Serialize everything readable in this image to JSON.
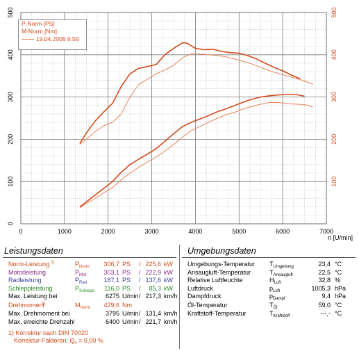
{
  "chart_data": {
    "type": "line",
    "xlabel": "n [U/min]",
    "xlim": [
      0,
      7000
    ],
    "ylim_left": [
      0,
      500
    ],
    "ylim_right": [
      0,
      500
    ],
    "x_ticks": [
      "0",
      "1000",
      "2000",
      "3000",
      "4000",
      "5000",
      "6000",
      "7000"
    ],
    "y_ticks_left": [
      "0",
      "100",
      "200",
      "300",
      "400",
      "500"
    ],
    "y_ticks_right": [
      "100",
      "200",
      "300",
      "400",
      "500"
    ],
    "grid": true,
    "legend": [
      "P-Norm [PS]",
      "M-Norm [Nm]",
      "19.04.2006 9:59"
    ],
    "colors": {
      "main": "#d44a1a",
      "comparison": "#e8825a",
      "grid": "#9a9a9a"
    },
    "series": [
      {
        "name": "P-Norm [PS]",
        "x": [
          1350,
          1500,
          1700,
          1900,
          2100,
          2300,
          2500,
          2700,
          2900,
          3100,
          3300,
          3500,
          3700,
          3900,
          4100,
          4300,
          4500,
          4700,
          4900,
          5100,
          5300,
          5500,
          5700,
          5900,
          6100,
          6300,
          6500
        ],
        "values": [
          40,
          52,
          68,
          84,
          100,
          122,
          140,
          153,
          165,
          178,
          195,
          213,
          230,
          240,
          248,
          256,
          265,
          272,
          280,
          288,
          295,
          300,
          303,
          305,
          306,
          306,
          302
        ]
      },
      {
        "name": "M-Norm [Nm]",
        "x": [
          1350,
          1500,
          1700,
          1900,
          2000,
          2100,
          2300,
          2500,
          2700,
          2900,
          3100,
          3300,
          3500,
          3700,
          3800,
          4000,
          4200,
          4400,
          4600,
          4800,
          5000,
          5200,
          5400,
          5600,
          5800,
          6000,
          6200,
          6400
        ],
        "values": [
          190,
          215,
          243,
          265,
          275,
          285,
          325,
          355,
          368,
          372,
          377,
          400,
          415,
          428,
          428,
          415,
          412,
          413,
          408,
          405,
          404,
          398,
          390,
          380,
          370,
          362,
          352,
          343
        ]
      },
      {
        "name": "19.04.2006 9:59",
        "x": [
          1350,
          1500,
          1700,
          1900,
          2100,
          2300,
          2500,
          2700,
          2900,
          3100,
          3300,
          3500,
          3700,
          3900,
          4100,
          4300,
          4500,
          4700,
          4900,
          5100,
          5300,
          5500,
          5700,
          5900,
          6100,
          6300,
          6500,
          6700
        ],
        "values": [
          38,
          48,
          60,
          73,
          86,
          104,
          120,
          134,
          146,
          158,
          172,
          188,
          205,
          220,
          230,
          240,
          250,
          258,
          264,
          272,
          278,
          283,
          287,
          287,
          285,
          283,
          282,
          276
        ]
      },
      {
        "name": "19.04.2006 9:59",
        "x": [
          1350,
          1500,
          1700,
          1900,
          2100,
          2300,
          2500,
          2700,
          2900,
          3100,
          3300,
          3500,
          3700,
          3900,
          4100,
          4300,
          4500,
          4700,
          4900,
          5100,
          5300,
          5500,
          5700,
          5900,
          6100,
          6300,
          6500,
          6700
        ],
        "values": [
          188,
          200,
          218,
          232,
          240,
          260,
          300,
          330,
          342,
          355,
          364,
          375,
          393,
          402,
          402,
          400,
          398,
          395,
          390,
          384,
          378,
          370,
          362,
          356,
          350,
          344,
          338,
          330
        ]
      }
    ]
  },
  "leistung": {
    "title": "Leistungsdaten",
    "rows": [
      {
        "label": "Norm-Leistung",
        "note": "1)",
        "sym": "P",
        "sub": "Norm",
        "v1": "306,7",
        "u1": "PS",
        "sep": "/",
        "v2": "225,6",
        "u2": "kW",
        "color": "orange"
      },
      {
        "label": "Motorleistung",
        "note": "",
        "sym": "P",
        "sub": "Mot",
        "v1": "303,1",
        "u1": "PS",
        "sep": "/",
        "v2": "222,9",
        "u2": "kW",
        "color": "purple"
      },
      {
        "label": "Radleistung",
        "note": "",
        "sym": "P",
        "sub": "Rad",
        "v1": "187,1",
        "u1": "PS",
        "sep": "/",
        "v2": "137,6",
        "u2": "kW",
        "color": "blue"
      },
      {
        "label": "Schleppleistung",
        "note": "",
        "sym": "P",
        "sub": "Schlepp",
        "v1": "116,0",
        "u1": "PS",
        "sep": "/",
        "v2": "85,3",
        "u2": "kW",
        "color": "green"
      },
      {
        "label": "Max. Leistung bei",
        "note": "",
        "sym": "",
        "sub": "",
        "v1": "6275",
        "u1": "U/min",
        "sep": "/",
        "v2": "217,3",
        "u2": "km/h",
        "color": ""
      }
    ],
    "torque": [
      {
        "label": "Drehmoment",
        "note": "1)",
        "sym": "M",
        "sub": "Norm",
        "v1": "429,6",
        "u1": "Nm",
        "sep": "",
        "v2": "",
        "u2": "",
        "color": "orange"
      },
      {
        "label": "Max. Drehmoment bei",
        "note": "",
        "sym": "",
        "sub": "",
        "v1": "3795",
        "u1": "U/min",
        "sep": "/",
        "v2": "131,4",
        "u2": "km/h",
        "color": ""
      },
      {
        "label": "Max. erreichte Drehzahl",
        "note": "",
        "sym": "",
        "sub": "",
        "v1": "6400",
        "u1": "U/min",
        "sep": "/",
        "v2": "221,7",
        "u2": "km/h",
        "color": ""
      }
    ],
    "footnote_1": "1) Korrektur nach DIN 70020",
    "footnote_2": "Korrektur-Faktoren: Q",
    "footnote_2_sub": "v",
    "footnote_2_val": "=   0,00 %"
  },
  "umgebung": {
    "title": "Umgebungsdaten",
    "rows": [
      {
        "label": "Umgebungs-Temperatur",
        "sym": "T",
        "sub": "Umgebung",
        "val": "23,4",
        "unit": "°C"
      },
      {
        "label": "Ansaugluft-Temperatur",
        "sym": "T",
        "sub": "Ansaugluft",
        "val": "22,5",
        "unit": "°C"
      },
      {
        "label": "Relative Luftfeuchte",
        "sym": "H",
        "sub": "Luft",
        "val": "32,8",
        "unit": "%"
      },
      {
        "label": "Luftdruck",
        "sym": "p",
        "sub": "Luft",
        "val": "1005,3",
        "unit": "hPa"
      },
      {
        "label": "Dampfdruck",
        "sym": "p",
        "sub": "Dampf",
        "val": "9,4",
        "unit": "hPa"
      },
      {
        "label": "Öl-Temperatur",
        "sym": "T",
        "sub": "Öl",
        "val": "59,0",
        "unit": "°C"
      },
      {
        "label": "Kraftstoff-Temperatur",
        "sym": "T",
        "sub": "Kraftstoff",
        "val": "---,-",
        "unit": "°C"
      }
    ]
  }
}
